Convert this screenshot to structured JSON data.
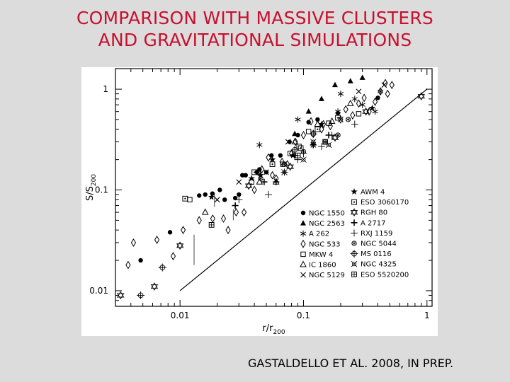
{
  "slide": {
    "title_line1": "COMPARISON WITH MASSIVE CLUSTERS",
    "title_line2": "AND GRAVITATIONAL SIMULATIONS",
    "credit": "GASTALDELLO ET AL. 2008, IN PREP.",
    "title_color": "#c8102e",
    "background_color": "#dcdcdc"
  },
  "chart_data": {
    "type": "scatter",
    "title": "",
    "xlabel": "r/r200",
    "ylabel": "S/S200",
    "xscale": "log",
    "yscale": "log",
    "xlim": [
      0.003,
      1.1
    ],
    "ylim": [
      0.007,
      1.6
    ],
    "x_ticks": [
      0.01,
      0.1,
      1
    ],
    "x_tick_labels": [
      "0.01",
      "0.1",
      "1"
    ],
    "y_ticks": [
      0.01,
      0.1,
      1
    ],
    "y_tick_labels": [
      "0.01",
      "0.1",
      "1"
    ],
    "grid": false,
    "legend_position": "bottom-right",
    "reference_line": {
      "x": [
        0.01,
        1
      ],
      "y": [
        0.01,
        1
      ]
    },
    "vertical_segments": [
      {
        "x": 0.013,
        "y": [
          0.018,
          0.036
        ]
      },
      {
        "x": 0.019,
        "y": [
          0.068,
          0.09
        ]
      },
      {
        "x": 0.027,
        "y": [
          0.05,
          0.064
        ]
      }
    ],
    "legend_col1": [
      {
        "name": "NGC 1550",
        "marker": "dot"
      },
      {
        "name": "NGC 2563",
        "marker": "triangle"
      },
      {
        "name": "A 262",
        "marker": "asterisk"
      },
      {
        "name": "NGC 533",
        "marker": "diamond"
      },
      {
        "name": "MKW 4",
        "marker": "square"
      },
      {
        "name": "IC 1860",
        "marker": "open-triangle"
      },
      {
        "name": "NGC 5129",
        "marker": "cross"
      }
    ],
    "legend_col2": [
      {
        "name": "AWM 4",
        "marker": "star"
      },
      {
        "name": "ESO 3060170",
        "marker": "dotted-square"
      },
      {
        "name": "RGH 80",
        "marker": "open-star"
      },
      {
        "name": "A 2717",
        "marker": "plus-bold"
      },
      {
        "name": "RXJ 1159",
        "marker": "plus-thin"
      },
      {
        "name": "NGC 5044",
        "marker": "circle-star"
      },
      {
        "name": "MS 0116",
        "marker": "circle-plus"
      },
      {
        "name": "NGC 4325",
        "marker": "circle-asterisk"
      },
      {
        "name": "ESO 5520200",
        "marker": "open-square-plus"
      }
    ],
    "series": [
      {
        "name": "NGC 1550",
        "marker": "dot",
        "x": [
          0.0048,
          0.0083,
          0.0143,
          0.016,
          0.0183,
          0.021,
          0.023,
          0.028,
          0.03,
          0.032,
          0.034,
          0.042,
          0.044,
          0.05,
          0.055,
          0.065,
          0.077,
          0.09,
          0.11,
          0.13,
          0.19,
          0.4
        ],
        "y": [
          0.02,
          0.038,
          0.088,
          0.09,
          0.092,
          0.1,
          0.08,
          0.083,
          0.09,
          0.14,
          0.14,
          0.15,
          0.16,
          0.15,
          0.22,
          0.22,
          0.3,
          0.35,
          0.47,
          0.5,
          0.58,
          0.82
        ]
      },
      {
        "name": "NGC 2563",
        "marker": "triangle",
        "x": [
          0.085,
          0.11,
          0.14,
          0.18,
          0.24,
          0.3
        ],
        "y": [
          0.36,
          0.6,
          0.8,
          1.1,
          1.2,
          1.3
        ]
      },
      {
        "name": "A 262",
        "marker": "asterisk",
        "x": [
          0.044,
          0.09,
          0.19,
          0.2,
          0.26,
          0.3,
          0.38,
          0.42
        ],
        "y": [
          0.28,
          0.5,
          0.6,
          0.9,
          0.8,
          0.7,
          0.6,
          0.95
        ]
      },
      {
        "name": "NGC 533",
        "marker": "diamond",
        "x": [
          0.0038,
          0.0042,
          0.0065,
          0.0088,
          0.0106,
          0.0143,
          0.0184,
          0.0225,
          0.0245,
          0.0285,
          0.033,
          0.04,
          0.043,
          0.046,
          0.052,
          0.056,
          0.06,
          0.067,
          0.074,
          0.08,
          0.086,
          0.1,
          0.115,
          0.12,
          0.14,
          0.145,
          0.165,
          0.2,
          0.22,
          0.25,
          0.28,
          0.31,
          0.34,
          0.38,
          0.42,
          0.46,
          0.48,
          0.52
        ],
        "y": [
          0.018,
          0.03,
          0.032,
          0.022,
          0.04,
          0.05,
          0.052,
          0.052,
          0.04,
          0.06,
          0.06,
          0.1,
          0.15,
          0.16,
          0.21,
          0.14,
          0.13,
          0.19,
          0.18,
          0.23,
          0.3,
          0.35,
          0.48,
          0.36,
          0.4,
          0.45,
          0.43,
          0.5,
          0.63,
          0.55,
          0.72,
          0.82,
          0.6,
          0.75,
          0.95,
          1.15,
          0.9,
          1.1
        ]
      },
      {
        "name": "MKW 4",
        "marker": "square",
        "x": [
          0.012,
          0.038,
          0.068,
          0.078,
          0.092,
          0.11,
          0.16,
          0.28
        ],
        "y": [
          0.08,
          0.12,
          0.18,
          0.23,
          0.27,
          0.38,
          0.46,
          0.57
        ]
      },
      {
        "name": "IC 1860",
        "marker": "open-triangle",
        "x": [
          0.016,
          0.044,
          0.06,
          0.085,
          0.13,
          0.17,
          0.24
        ],
        "y": [
          0.06,
          0.12,
          0.12,
          0.3,
          0.45,
          0.48,
          0.72
        ]
      },
      {
        "name": "NGC 5129",
        "marker": "cross",
        "x": [
          0.02,
          0.03,
          0.05,
          0.075,
          0.12,
          0.2,
          0.28,
          0.45
        ],
        "y": [
          0.08,
          0.12,
          0.15,
          0.3,
          0.28,
          0.5,
          0.95,
          1.1
        ]
      },
      {
        "name": "AWM 4",
        "marker": "star",
        "x": [
          0.018,
          0.038,
          0.045,
          0.056,
          0.082,
          0.14,
          0.36
        ],
        "y": [
          0.085,
          0.13,
          0.14,
          0.2,
          0.22,
          0.45,
          0.65
        ]
      },
      {
        "name": "ESO 3060170",
        "marker": "dotted-square",
        "x": [
          0.011,
          0.04,
          0.056,
          0.095,
          0.13,
          0.19
        ],
        "y": [
          0.082,
          0.15,
          0.18,
          0.26,
          0.4,
          0.52
        ]
      },
      {
        "name": "RGH 80",
        "marker": "open-star",
        "x": [
          0.0033,
          0.0062,
          0.01,
          0.036,
          0.078,
          0.18,
          0.32,
          0.9
        ],
        "y": [
          0.009,
          0.011,
          0.028,
          0.11,
          0.17,
          0.33,
          0.6,
          0.85
        ]
      },
      {
        "name": "A 2717",
        "marker": "plus-bold",
        "x": [
          0.028,
          0.048,
          0.06,
          0.085,
          0.12,
          0.16
        ],
        "y": [
          0.07,
          0.12,
          0.12,
          0.22,
          0.28,
          0.35
        ]
      },
      {
        "name": "RXJ 1159",
        "marker": "plus-thin",
        "x": [
          0.03,
          0.052,
          0.07,
          0.09,
          0.1,
          0.14,
          0.17,
          0.26
        ],
        "y": [
          0.08,
          0.09,
          0.15,
          0.2,
          0.23,
          0.27,
          0.35,
          0.45
        ]
      },
      {
        "name": "NGC 5044",
        "marker": "circle-star",
        "x": [
          0.045,
          0.07,
          0.1,
          0.15,
          0.19,
          0.23
        ],
        "y": [
          0.13,
          0.18,
          0.24,
          0.3,
          0.35,
          0.5
        ]
      },
      {
        "name": "MS 0116",
        "marker": "circle-plus",
        "x": [
          0.0048,
          0.0072,
          0.085,
          0.12
        ],
        "y": [
          0.009,
          0.017,
          0.25,
          0.36
        ]
      },
      {
        "name": "NGC 4325",
        "marker": "circle-asterisk",
        "x": [
          0.07,
          0.1,
          0.12,
          0.16
        ],
        "y": [
          0.15,
          0.2,
          0.3,
          0.28
        ]
      },
      {
        "name": "ESO 5520200",
        "marker": "open-square-plus",
        "x": [
          0.018,
          0.09,
          0.15
        ],
        "y": [
          0.045,
          0.22,
          0.3
        ]
      }
    ]
  }
}
